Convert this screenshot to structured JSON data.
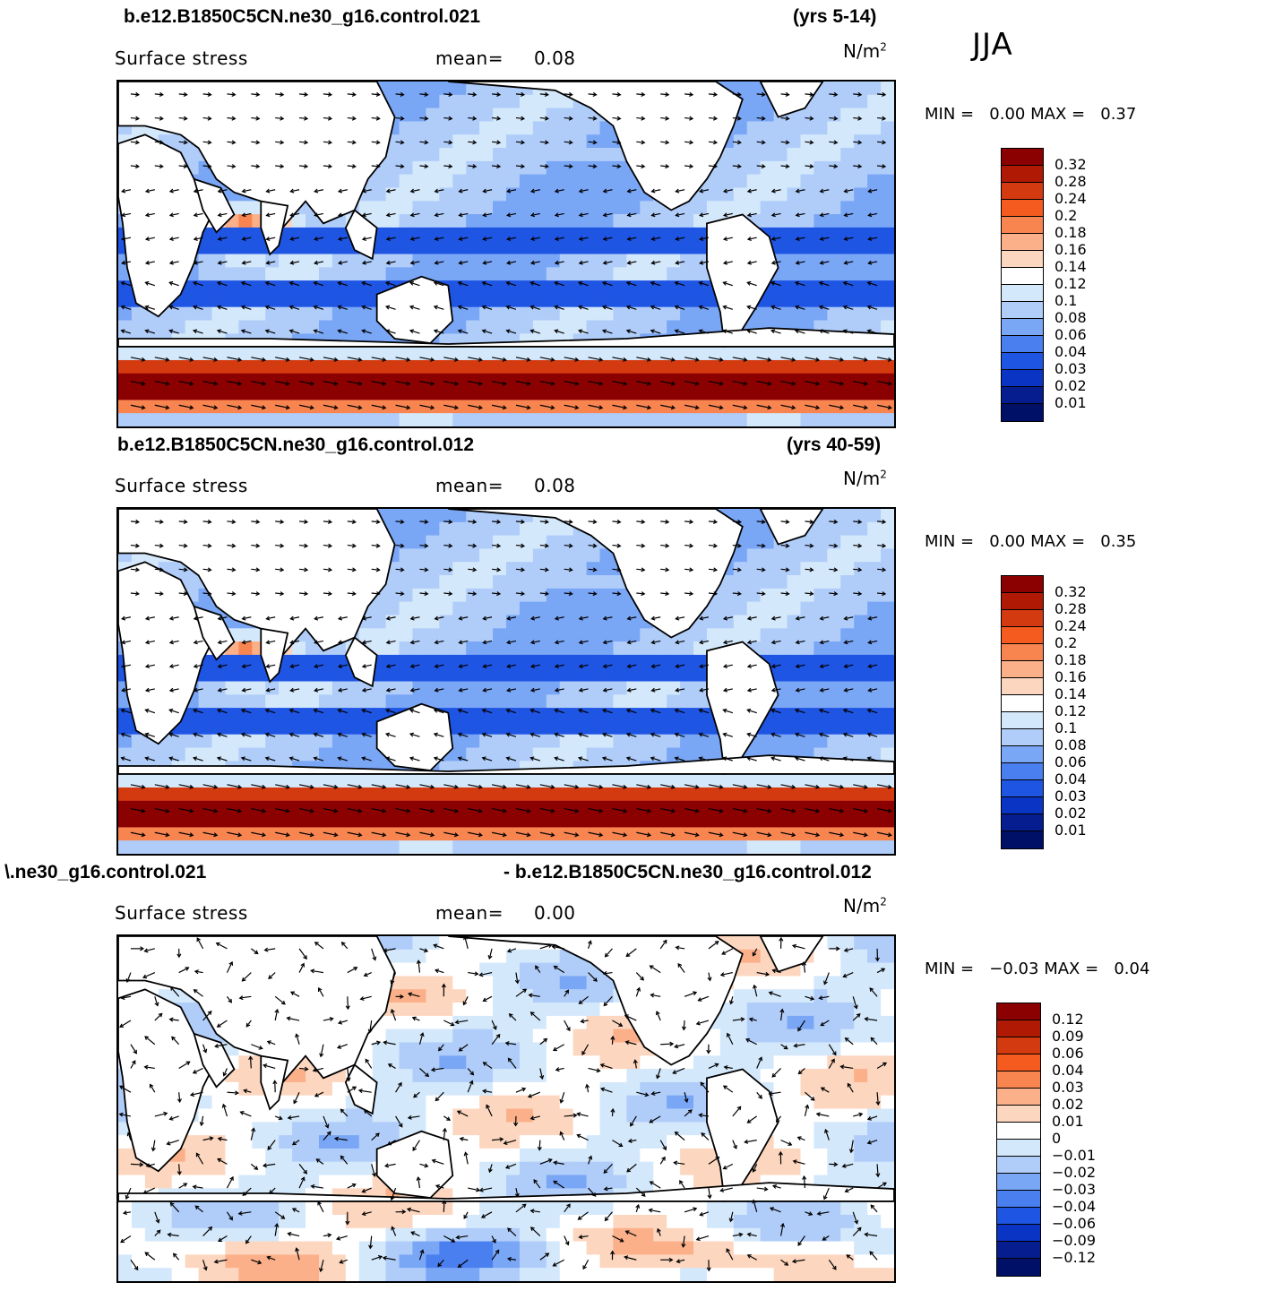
{
  "season": "JJA",
  "panels": [
    {
      "title_left": "b.e12.B1850C5CN.ne30_g16.control.021",
      "title_right": "(yrs 5-14)",
      "variable": "Surface stress",
      "mean_label": "mean=",
      "mean_value": "0.08",
      "units": "N/m",
      "units_exp": "2",
      "min_label": "MIN =",
      "min_value": "0.00",
      "max_label": "MAX =",
      "max_value": "0.37",
      "colorbar": {
        "labels": [
          "0.32",
          "0.28",
          "0.24",
          "0.2",
          "0.18",
          "0.16",
          "0.14",
          "0.12",
          "0.1",
          "0.08",
          "0.06",
          "0.04",
          "0.03",
          "0.02",
          "0.01"
        ],
        "colors": [
          "#8b0000",
          "#b01a05",
          "#d43a10",
          "#f55a1f",
          "#f88550",
          "#fbb08a",
          "#fdd6bf",
          "#ffffff",
          "#d4e8fb",
          "#b0cdfa",
          "#7aa6f6",
          "#4a7ff0",
          "#1f55e3",
          "#0a34c4",
          "#061d8f",
          "#001066"
        ]
      }
    },
    {
      "title_left": "b.e12.B1850C5CN.ne30_g16.control.012",
      "title_right": "(yrs 40-59)",
      "variable": "Surface stress",
      "mean_label": "mean=",
      "mean_value": "0.08",
      "units": "N/m",
      "units_exp": "2",
      "min_label": "MIN =",
      "min_value": "0.00",
      "max_label": "MAX =",
      "max_value": "0.35",
      "colorbar": {
        "labels": [
          "0.32",
          "0.28",
          "0.24",
          "0.2",
          "0.18",
          "0.16",
          "0.14",
          "0.12",
          "0.1",
          "0.08",
          "0.06",
          "0.04",
          "0.03",
          "0.02",
          "0.01"
        ],
        "colors": [
          "#8b0000",
          "#b01a05",
          "#d43a10",
          "#f55a1f",
          "#f88550",
          "#fbb08a",
          "#fdd6bf",
          "#ffffff",
          "#d4e8fb",
          "#b0cdfa",
          "#7aa6f6",
          "#4a7ff0",
          "#1f55e3",
          "#0a34c4",
          "#061d8f",
          "#001066"
        ]
      }
    },
    {
      "title_left": "\\.ne30_g16.control.021",
      "title_right": "- b.e12.B1850C5CN.ne30_g16.control.012",
      "variable": "Surface stress",
      "mean_label": "mean=",
      "mean_value": "0.00",
      "units": "N/m",
      "units_exp": "2",
      "min_label": "MIN =",
      "min_value": "−0.03",
      "max_label": "MAX =",
      "max_value": "0.04",
      "colorbar": {
        "labels": [
          "0.12",
          "0.09",
          "0.06",
          "0.04",
          "0.03",
          "0.02",
          "0.01",
          "0",
          "−0.01",
          "−0.02",
          "−0.03",
          "−0.04",
          "−0.06",
          "−0.09",
          "−0.12"
        ],
        "colors": [
          "#8b0000",
          "#b01a05",
          "#d43a10",
          "#f55a1f",
          "#f88550",
          "#fbb08a",
          "#fdd6bf",
          "#ffffff",
          "#d4e8fb",
          "#b0cdfa",
          "#7aa6f6",
          "#4a7ff0",
          "#1f55e3",
          "#0a34c4",
          "#061d8f",
          "#001066"
        ]
      }
    }
  ],
  "chart_data": [
    {
      "type": "heatmap",
      "title": "Surface stress",
      "units": "N/m2",
      "season": "JJA",
      "case": "b.e12.B1850C5CN.ne30_g16.control.021",
      "years": "(yrs 5-14)",
      "mean": 0.08,
      "min": 0.0,
      "max": 0.37,
      "contour_levels": [
        0.01,
        0.02,
        0.03,
        0.04,
        0.06,
        0.08,
        0.1,
        0.12,
        0.14,
        0.16,
        0.18,
        0.2,
        0.24,
        0.28,
        0.32
      ]
    },
    {
      "type": "heatmap",
      "title": "Surface stress",
      "units": "N/m2",
      "season": "JJA",
      "case": "b.e12.B1850C5CN.ne30_g16.control.012",
      "years": "(yrs 40-59)",
      "mean": 0.08,
      "min": 0.0,
      "max": 0.35,
      "contour_levels": [
        0.01,
        0.02,
        0.03,
        0.04,
        0.06,
        0.08,
        0.1,
        0.12,
        0.14,
        0.16,
        0.18,
        0.2,
        0.24,
        0.28,
        0.32
      ]
    },
    {
      "type": "heatmap",
      "title": "Surface stress",
      "units": "N/m2",
      "season": "JJA",
      "mean": 0.0,
      "min": -0.03,
      "max": 0.04,
      "contour_levels": [
        -0.12,
        -0.09,
        -0.06,
        -0.04,
        -0.03,
        -0.02,
        -0.01,
        0,
        0.01,
        0.02,
        0.03,
        0.04,
        0.06,
        0.09,
        0.12
      ]
    }
  ]
}
